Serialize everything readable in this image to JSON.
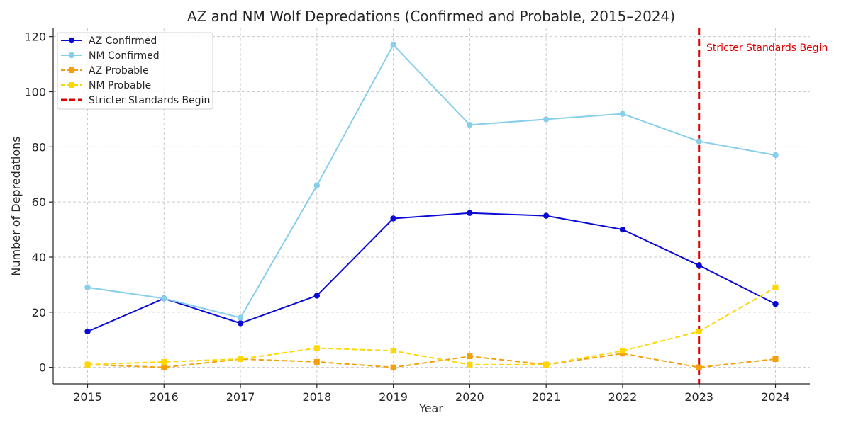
{
  "chart_data": {
    "type": "line",
    "title": "AZ and NM Wolf Depredations (Confirmed and Probable, 2015–2024)",
    "xlabel": "Year",
    "ylabel": "Number of Depredations",
    "x": [
      2015,
      2016,
      2017,
      2018,
      2019,
      2020,
      2021,
      2022,
      2023,
      2024
    ],
    "xlim": [
      2014.55,
      2024.45
    ],
    "ylim": [
      -6,
      123
    ],
    "yticks": [
      0,
      20,
      40,
      60,
      80,
      100,
      120
    ],
    "grid": true,
    "legend_position": "top-left",
    "series": [
      {
        "name": "AZ Confirmed",
        "values": [
          13,
          25,
          16,
          26,
          54,
          56,
          55,
          50,
          37,
          23
        ],
        "color": "#0a0ad4",
        "dash": "solid",
        "marker": "circle"
      },
      {
        "name": "NM Confirmed",
        "values": [
          29,
          25,
          18,
          66,
          117,
          88,
          90,
          92,
          82,
          77
        ],
        "color": "#87ceeb",
        "dash": "solid",
        "marker": "circle"
      },
      {
        "name": "AZ Probable",
        "values": [
          1,
          0,
          3,
          2,
          0,
          4,
          1,
          5,
          0,
          3
        ],
        "color": "#f5a00a",
        "dash": "dashed",
        "marker": "square"
      },
      {
        "name": "NM Probable",
        "values": [
          1,
          2,
          3,
          7,
          6,
          1,
          1,
          6,
          13,
          29
        ],
        "color": "#ffd700",
        "dash": "dashed",
        "marker": "square"
      }
    ],
    "vline": {
      "name": "Stricter Standards Begin",
      "x": 2023,
      "color": "#e00000",
      "dash": "dashed"
    },
    "annotation": {
      "text": "Stricter Standards Begin",
      "color": "#e00000"
    }
  }
}
